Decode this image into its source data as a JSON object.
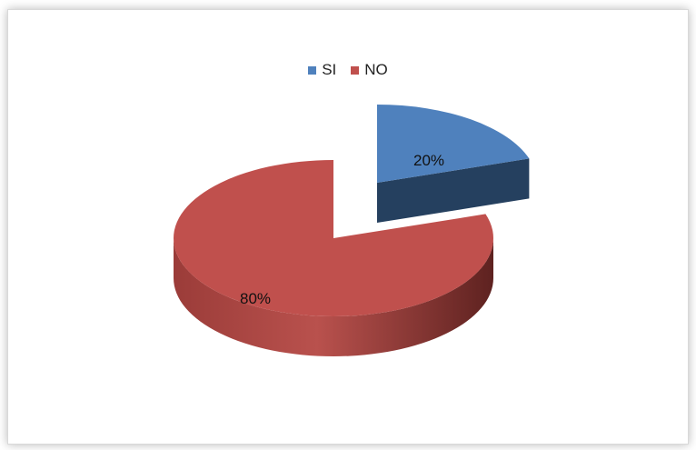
{
  "chart_data": {
    "type": "pie",
    "style": "3d-exploded",
    "series": [
      {
        "name": "SI",
        "value": 20,
        "label": "20%",
        "color": "#4f81bd",
        "side_color": "#25405f"
      },
      {
        "name": "NO",
        "value": 80,
        "label": "80%",
        "color": "#c0504d",
        "side_color": "#7a2c2a"
      }
    ],
    "legend_position": "top",
    "title": ""
  }
}
